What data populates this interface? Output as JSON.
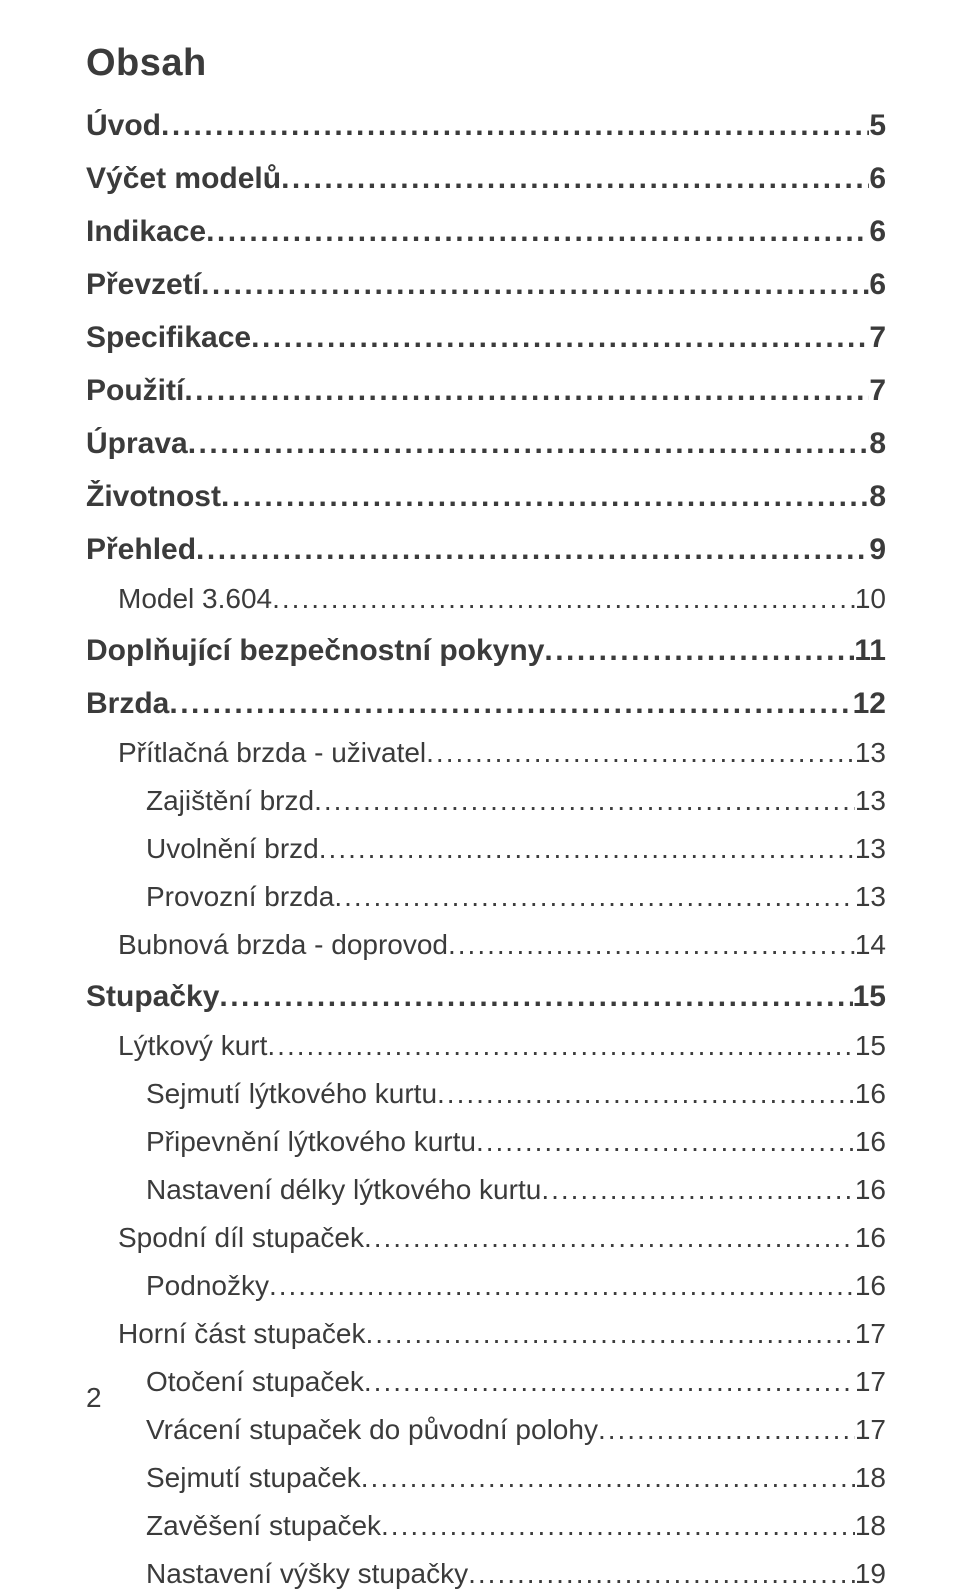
{
  "title": "Obsah",
  "text_color": "#3b3b3b",
  "background_color": "#ffffff",
  "entries": [
    {
      "level": 0,
      "label": "Úvod",
      "page": "5"
    },
    {
      "level": 0,
      "label": "Výčet modelů",
      "page": "6"
    },
    {
      "level": 0,
      "label": "Indikace",
      "page": "6"
    },
    {
      "level": 0,
      "label": "Převzetí",
      "page": "6"
    },
    {
      "level": 0,
      "label": "Specifikace",
      "page": "7"
    },
    {
      "level": 0,
      "label": "Použití",
      "page": "7"
    },
    {
      "level": 0,
      "label": "Úprava",
      "page": "8"
    },
    {
      "level": 0,
      "label": "Životnost",
      "page": "8"
    },
    {
      "level": 0,
      "label": "Přehled",
      "page": "9"
    },
    {
      "level": 1,
      "label": "Model 3.604",
      "page": "10"
    },
    {
      "level": 0,
      "label": "Doplňující bezpečnostní pokyny",
      "page": "11"
    },
    {
      "level": 0,
      "label": "Brzda",
      "page": "12"
    },
    {
      "level": 1,
      "label": "Přítlačná brzda - uživatel",
      "page": "13"
    },
    {
      "level": 2,
      "label": "Zajištění brzd",
      "page": "13"
    },
    {
      "level": 2,
      "label": "Uvolnění brzd",
      "page": "13"
    },
    {
      "level": 2,
      "label": "Provozní brzda",
      "page": "13"
    },
    {
      "level": 1,
      "label": "Bubnová brzda - doprovod",
      "page": "14"
    },
    {
      "level": 0,
      "label": "Stupačky",
      "page": "15"
    },
    {
      "level": 1,
      "label": "Lýtkový kurt",
      "page": "15"
    },
    {
      "level": 2,
      "label": "Sejmutí lýtkového kurtu",
      "page": "16"
    },
    {
      "level": 2,
      "label": "Připevnění lýtkového kurtu",
      "page": "16"
    },
    {
      "level": 2,
      "label": "Nastavení délky lýtkového kurtu",
      "page": "16"
    },
    {
      "level": 1,
      "label": "Spodní díl stupaček",
      "page": "16"
    },
    {
      "level": 2,
      "label": "Podnožky",
      "page": "16"
    },
    {
      "level": 1,
      "label": "Horní část stupaček",
      "page": "17"
    },
    {
      "level": 2,
      "label": "Otočení stupaček ",
      "page": "17"
    },
    {
      "level": 2,
      "label": "Vrácení stupaček do původní polohy",
      "page": "17"
    },
    {
      "level": 2,
      "label": "Sejmutí stupaček",
      "page": "18"
    },
    {
      "level": 2,
      "label": "Zavěšení stupaček",
      "page": "18"
    },
    {
      "level": 2,
      "label": "Nastavení výšky stupačky",
      "page": "19"
    }
  ],
  "footer_page_number": "2"
}
